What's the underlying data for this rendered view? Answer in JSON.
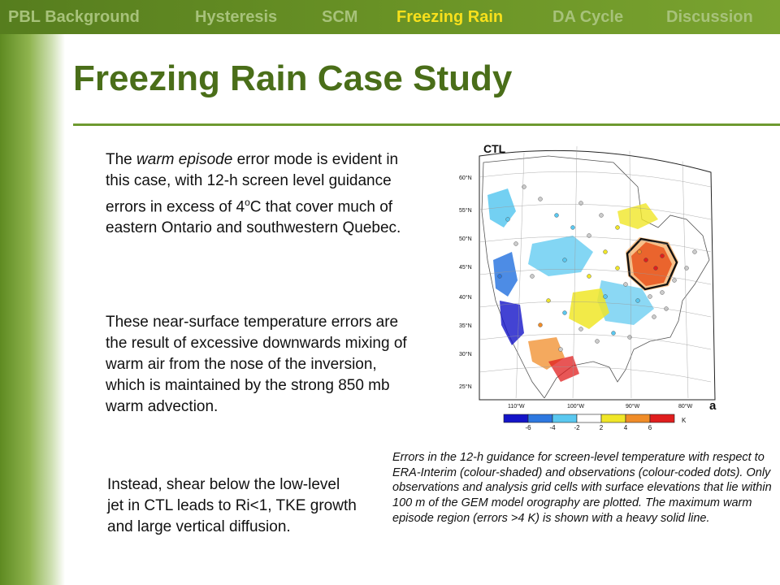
{
  "nav": {
    "items": [
      "PBL Background",
      "Hysteresis",
      "SCM",
      "Freezing Rain",
      "DA Cycle",
      "Discussion"
    ],
    "active": "Freezing Rain"
  },
  "page": {
    "title": "Freezing Rain Case Study"
  },
  "content": {
    "p1_before": "The ",
    "p1_em": "warm episode",
    "p1_mid": " error mode is evident in this case, with 12-h screen level guidance errors in excess of 4",
    "p1_sup": "o",
    "p1_after": "C that cover much of eastern Ontario and southwestern Quebec.",
    "p2": "These near-surface temperature errors are the result of excessive downwards mixing of warm air from the nose of the inversion, which is maintained by the strong 850 mb warm advection.",
    "p3": "Instead, shear below the low-level jet in CTL leads to Ri<1, TKE growth and large vertical diffusion."
  },
  "figure": {
    "panel_title": "CTL",
    "panel_letter": "a",
    "lat_labels": [
      "60°N",
      "55°N",
      "50°N",
      "45°N",
      "40°N",
      "35°N",
      "30°N",
      "25°N"
    ],
    "lon_labels": [
      "110°W",
      "100°W",
      "90°W",
      "80°W"
    ],
    "colorbar": {
      "ticks": [
        "-6",
        "-4",
        "-2",
        "2",
        "4",
        "6"
      ],
      "unit": "K",
      "colors": [
        "#1414c8",
        "#2e78e0",
        "#5ac8f0",
        "#ffffff",
        "#f0e628",
        "#f08c28",
        "#e01e1e"
      ]
    },
    "caption": "Errors in the 12-h guidance for screen-level temperature with respect to ERA-Interim (colour-shaded) and observations (colour-coded dots).  Only observations and analysis grid cells with surface elevations that lie within 100 m of the GEM model orography are plotted.  The maximum warm episode region (errors >4 K) is shown with a heavy solid line."
  }
}
